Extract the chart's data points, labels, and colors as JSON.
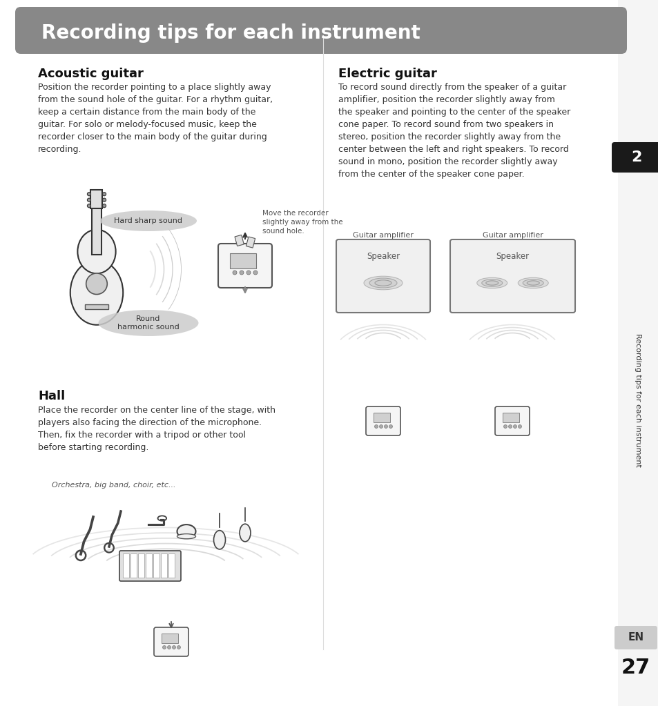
{
  "title": "Recording tips for each instrument",
  "title_bg": "#888888",
  "title_color": "#ffffff",
  "bg_color": "#ffffff",
  "sidebar_bg": "#1a1a1a",
  "sidebar_number": "2",
  "sidebar_text": "Recording tips for each instrument",
  "footer_label": "EN",
  "footer_number": "27",
  "section1_title": "Acoustic guitar",
  "section1_body": "Position the recorder pointing to a place slightly away\nfrom the sound hole of the guitar. For a rhythm guitar,\nkeep a certain distance from the main body of the\nguitar. For solo or melody-focused music, keep the\nrecorder closer to the main body of the guitar during\nrecording.",
  "label_hard": "Hard sharp sound",
  "label_round": "Round\nharmonic sound",
  "label_move": "Move the recorder\nslightly away from the\nsound hole.",
  "section2_title": "Electric guitar",
  "section2_body": "To record sound directly from the speaker of a guitar\namplifier, position the recorder slightly away from\nthe speaker and pointing to the center of the speaker\ncone paper. To record sound from two speakers in\nstereo, position the recorder slightly away from the\ncenter between the left and right speakers. To record\nsound in mono, position the recorder slightly away\nfrom the center of the speaker cone paper.",
  "label_amp1": "Guitar amplifier",
  "label_amp2": "Guitar amplifier",
  "label_spk1": "Speaker",
  "label_spk2": "Speaker",
  "section3_title": "Hall",
  "section3_body": "Place the recorder on the center line of the stage, with\nplayers also facing the direction of the microphone.\nThen, fix the recorder with a tripod or other tool\nbefore starting recording.",
  "label_orch": "Orchestra, big band, choir, etc..."
}
